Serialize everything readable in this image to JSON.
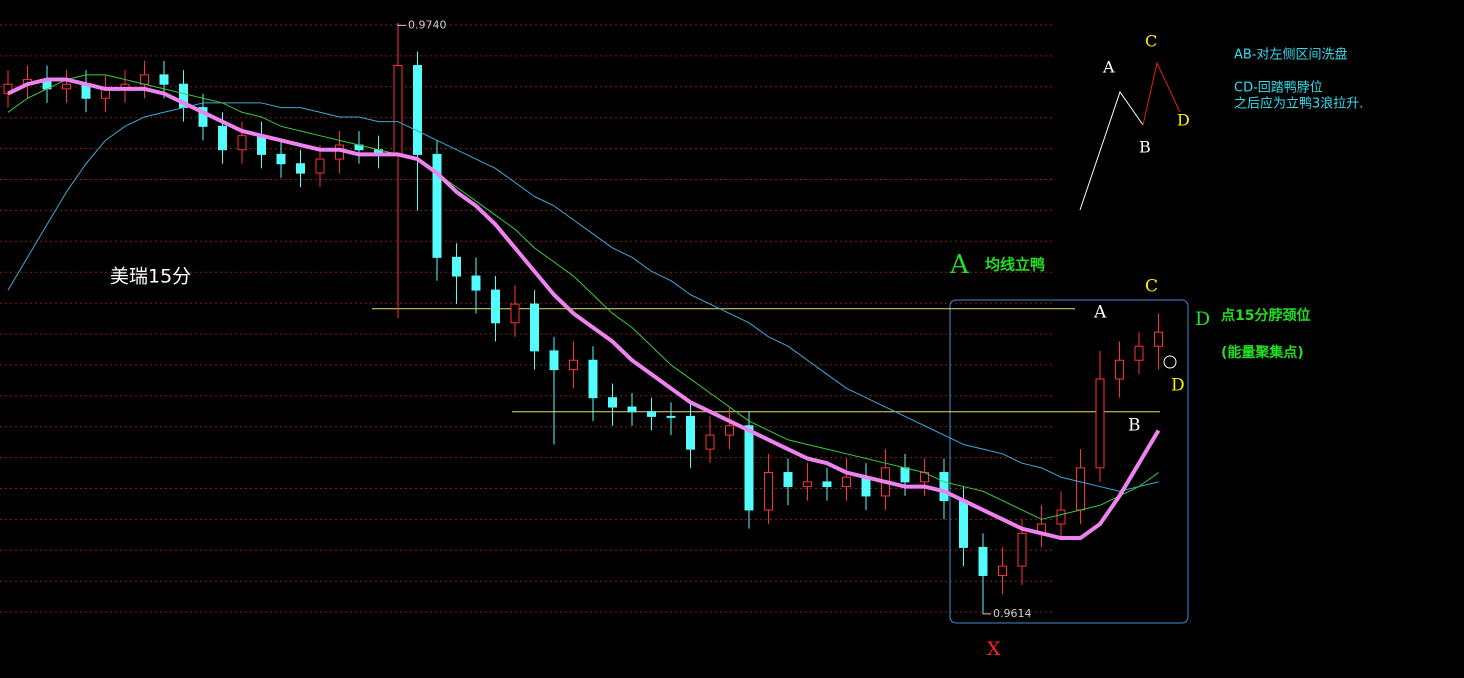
{
  "chart_data": {
    "type": "candlestick",
    "title": "美瑞15分",
    "ylim": [
      0.9605,
      0.9745
    ],
    "open": [
      0.9725,
      0.9727,
      0.9728,
      0.9726,
      0.9727,
      0.9724,
      0.9726,
      0.9727,
      0.9729,
      0.9727,
      0.9722,
      0.9718,
      0.9713,
      0.9716,
      0.9712,
      0.971,
      0.9708,
      0.9711,
      0.9714,
      0.9713,
      0.9712,
      0.9731,
      0.9712,
      0.969,
      0.9686,
      0.9683,
      0.9676,
      0.968,
      0.967,
      0.9666,
      0.9668,
      0.966,
      0.9658,
      0.9657,
      0.9656,
      0.9656,
      0.9649,
      0.9652,
      0.9654,
      0.9636,
      0.9644,
      0.9641,
      0.9642,
      0.9641,
      0.9643,
      0.9639,
      0.9645,
      0.9642,
      0.9644,
      0.9638,
      0.9628,
      0.9622,
      0.9624,
      0.9631,
      0.9633,
      0.9636,
      0.9645,
      0.9664,
      0.9668,
      0.9671
    ],
    "high": [
      0.973,
      0.9731,
      0.9731,
      0.973,
      0.973,
      0.9729,
      0.973,
      0.9732,
      0.9732,
      0.973,
      0.9725,
      0.9721,
      0.9719,
      0.9719,
      0.9715,
      0.9713,
      0.9714,
      0.9717,
      0.9717,
      0.9716,
      0.974,
      0.9734,
      0.9715,
      0.9693,
      0.969,
      0.9686,
      0.9684,
      0.9683,
      0.9673,
      0.9672,
      0.9671,
      0.9663,
      0.9661,
      0.966,
      0.9659,
      0.9659,
      0.9656,
      0.9658,
      0.9657,
      0.9648,
      0.9647,
      0.9646,
      0.9645,
      0.9647,
      0.9646,
      0.9649,
      0.9648,
      0.9647,
      0.9647,
      0.9641,
      0.9631,
      0.9628,
      0.9634,
      0.9637,
      0.964,
      0.9649,
      0.967,
      0.9672,
      0.9674,
      0.9678
    ],
    "low": [
      0.9722,
      0.9724,
      0.9723,
      0.9723,
      0.9721,
      0.9721,
      0.9723,
      0.9724,
      0.9724,
      0.9719,
      0.9715,
      0.971,
      0.971,
      0.9709,
      0.9707,
      0.9705,
      0.9705,
      0.9708,
      0.971,
      0.9709,
      0.9677,
      0.97,
      0.9685,
      0.968,
      0.9678,
      0.9672,
      0.9673,
      0.9666,
      0.965,
      0.9662,
      0.9655,
      0.9654,
      0.9654,
      0.9653,
      0.9652,
      0.9645,
      0.9646,
      0.9649,
      0.9632,
      0.9633,
      0.9637,
      0.9638,
      0.9638,
      0.9638,
      0.9636,
      0.9636,
      0.9639,
      0.9639,
      0.9634,
      0.9624,
      0.9614,
      0.9618,
      0.962,
      0.9628,
      0.963,
      0.9633,
      0.9642,
      0.966,
      0.9665,
      0.9666
    ],
    "close": [
      0.9727,
      0.9728,
      0.9726,
      0.9727,
      0.9724,
      0.9726,
      0.9727,
      0.9729,
      0.9727,
      0.9722,
      0.9718,
      0.9713,
      0.9716,
      0.9712,
      0.971,
      0.9708,
      0.9711,
      0.9714,
      0.9713,
      0.9712,
      0.9731,
      0.9712,
      0.969,
      0.9686,
      0.9683,
      0.9676,
      0.968,
      0.967,
      0.9666,
      0.9668,
      0.966,
      0.9658,
      0.9657,
      0.9656,
      0.9656,
      0.9649,
      0.9652,
      0.9654,
      0.9636,
      0.9644,
      0.9641,
      0.9642,
      0.9641,
      0.9643,
      0.9639,
      0.9645,
      0.9642,
      0.9644,
      0.9638,
      0.9628,
      0.9622,
      0.9624,
      0.9631,
      0.9633,
      0.9636,
      0.9645,
      0.9664,
      0.9668,
      0.9671,
      0.9674
    ],
    "up_color": "#ff3232",
    "down_color": "#54fcfc",
    "lines": [
      {
        "color": "#3fa9d8",
        "width": 1,
        "values": [
          0.9683,
          0.969,
          0.9697,
          0.9704,
          0.971,
          0.9715,
          0.9718,
          0.972,
          0.9721,
          0.9722,
          0.9723,
          0.9723,
          0.9723,
          0.9723,
          0.9722,
          0.9722,
          0.9721,
          0.972,
          0.972,
          0.9719,
          0.9719,
          0.9717,
          0.9715,
          0.9713,
          0.9711,
          0.9709,
          0.9706,
          0.9703,
          0.9701,
          0.9698,
          0.9695,
          0.9692,
          0.969,
          0.9687,
          0.9685,
          0.9682,
          0.968,
          0.9678,
          0.9676,
          0.9673,
          0.9671,
          0.9668,
          0.9665,
          0.9662,
          0.966,
          0.9658,
          0.9656,
          0.9654,
          0.9652,
          0.965,
          0.9649,
          0.9648,
          0.9646,
          0.9645,
          0.9643,
          0.9642,
          0.9641,
          0.964,
          0.9641,
          0.9642
        ]
      },
      {
        "color": "#3cc83c",
        "width": 1,
        "values": [
          0.9721,
          0.9724,
          0.9726,
          0.9728,
          0.9729,
          0.9729,
          0.9728,
          0.9727,
          0.9726,
          0.9725,
          0.9724,
          0.9723,
          0.9721,
          0.972,
          0.9718,
          0.9717,
          0.9716,
          0.9715,
          0.9714,
          0.9713,
          0.9712,
          0.9711,
          0.9708,
          0.9705,
          0.9702,
          0.9699,
          0.9696,
          0.9692,
          0.9689,
          0.9686,
          0.9682,
          0.9678,
          0.9675,
          0.9671,
          0.9667,
          0.9664,
          0.9661,
          0.9658,
          0.9655,
          0.9653,
          0.9651,
          0.965,
          0.9649,
          0.9648,
          0.9647,
          0.9646,
          0.9645,
          0.9644,
          0.9642,
          0.9641,
          0.964,
          0.9638,
          0.9636,
          0.9634,
          0.9635,
          0.9636,
          0.9637,
          0.9639,
          0.9641,
          0.9644
        ]
      },
      {
        "color": "#ee82ee",
        "width": 4,
        "values": [
          0.9725,
          0.9727,
          0.9728,
          0.9728,
          0.9727,
          0.9726,
          0.9726,
          0.9726,
          0.9725,
          0.9723,
          0.9721,
          0.9719,
          0.9717,
          0.9716,
          0.9715,
          0.9714,
          0.9713,
          0.9713,
          0.9712,
          0.9712,
          0.9712,
          0.9711,
          0.9708,
          0.9704,
          0.9701,
          0.9697,
          0.9692,
          0.9687,
          0.9682,
          0.9678,
          0.9675,
          0.9672,
          0.9668,
          0.9665,
          0.9662,
          0.9659,
          0.9657,
          0.9655,
          0.9653,
          0.9651,
          0.9649,
          0.9647,
          0.9646,
          0.9644,
          0.9643,
          0.9642,
          0.9641,
          0.9641,
          0.964,
          0.9638,
          0.9636,
          0.9634,
          0.9632,
          0.9631,
          0.963,
          0.963,
          0.9633,
          0.9639,
          0.9646,
          0.9653
        ]
      }
    ],
    "levels": [
      0.9679,
      0.9657
    ],
    "high_marker": {
      "value": 0.974,
      "label": "0.9740"
    },
    "low_marker": {
      "value": 0.9614,
      "label": "0.9614"
    },
    "annotations": [
      "A",
      "均线立鸭",
      "C",
      "A",
      "D",
      "点15分脖颈位",
      "(能量聚集点)",
      "D",
      "B",
      "X"
    ],
    "legend_box": {
      "labels": [
        "A",
        "C",
        "B",
        "D"
      ],
      "notes": [
        "AB-对左侧区间洗盘",
        "CD-回踏鸭脖位",
        "之后应为立鸭3浪拉升."
      ]
    }
  }
}
